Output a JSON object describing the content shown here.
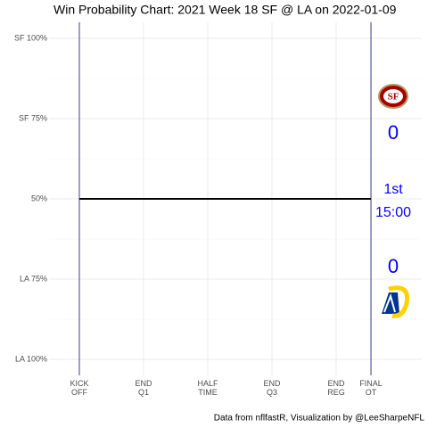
{
  "chart_data": {
    "type": "line",
    "title": "Win Probability Chart: 2021 Week 18 SF @ LA on 2022-01-09",
    "caption": "Data from nflfastR, Visualization by @LeeSharpeNFL",
    "x": [
      0,
      4088
    ],
    "series": [
      {
        "name": "SF",
        "color": "#000000",
        "values": [
          50,
          50
        ]
      }
    ],
    "xlim": [
      -425,
      4800
    ],
    "xticks": [
      {
        "value": 0,
        "label": "KICK\nOFF"
      },
      {
        "value": 900,
        "label": "END\nQ1"
      },
      {
        "value": 1800,
        "label": "HALF\nTIME"
      },
      {
        "value": 2700,
        "label": "END\nQ3"
      },
      {
        "value": 3600,
        "label": "END\nREG"
      },
      {
        "value": 4088,
        "label": "FINAL\nOT"
      }
    ],
    "ylim": [
      -5,
      105
    ],
    "yticks": [
      {
        "value": 100,
        "label": "SF 100%"
      },
      {
        "value": 75,
        "label": "SF 75%"
      },
      {
        "value": 50,
        "label": "50%"
      },
      {
        "value": 25,
        "label": "LA 75%"
      },
      {
        "value": 0,
        "label": "LA 100%"
      }
    ],
    "minor_yticks": [
      12.5,
      37.5,
      62.5,
      87.5
    ],
    "vlines": [
      0,
      4088
    ],
    "vline_color": "#3b3b8f",
    "grid": true,
    "away_score": 0,
    "home_score": 0,
    "period": "1st",
    "clock": "15:00",
    "text_color": "#0000ff"
  }
}
